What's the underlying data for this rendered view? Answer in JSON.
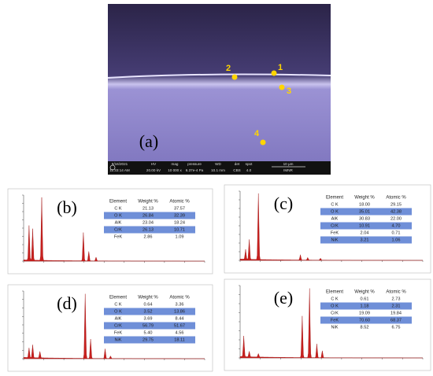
{
  "sem": {
    "label": "(a)",
    "points": [
      "1",
      "2",
      "3",
      "4"
    ],
    "info": {
      "date": "9/16/2021",
      "time": "11:33:14 AM",
      "hv_label": "HV",
      "hv": "20.00 kV",
      "mag_label": "mag",
      "mag": "10 000 x",
      "pressure_label": "pressure",
      "pressure": "6.37e-4 Pa",
      "wd_label": "WD",
      "wd": "10.1 mm",
      "det_label": "det",
      "det": "CBS",
      "spot_label": "spot",
      "spot": "4.0",
      "scale": "10 μm",
      "lab": "IMNR"
    }
  },
  "panels": [
    {
      "label": "(b)",
      "header": [
        "Element",
        "Weight %",
        "Atomic %"
      ],
      "rows": [
        [
          "C K",
          "21.13",
          "37.57"
        ],
        [
          "O K",
          "26.84",
          "32.39"
        ],
        [
          "AlK",
          "23.04",
          "18.24"
        ],
        [
          "CrK",
          "26.13",
          "10.71"
        ],
        [
          "FeK",
          "2.86",
          "1.09"
        ]
      ]
    },
    {
      "label": "(c)",
      "header": [
        "Element",
        "Weight %",
        "Atomic %"
      ],
      "rows": [
        [
          "C K",
          "18.00",
          "29.15"
        ],
        [
          "O K",
          "35.01",
          "42.38"
        ],
        [
          "AlK",
          "30.83",
          "22.00"
        ],
        [
          "CrK",
          "10.91",
          "4.70"
        ],
        [
          "FeK",
          "2.04",
          "0.71"
        ],
        [
          "NiK",
          "3.21",
          "1.06"
        ]
      ]
    },
    {
      "label": "(d)",
      "header": [
        "Element",
        "Weight %",
        "Atomic %"
      ],
      "rows": [
        [
          "C K",
          "0.64",
          "3.36"
        ],
        [
          "O K",
          "3.52",
          "13.86"
        ],
        [
          "AlK",
          "3.69",
          "8.44"
        ],
        [
          "CrK",
          "56.79",
          "51.67"
        ],
        [
          "FeK",
          "5.40",
          "4.56"
        ],
        [
          "NiK",
          "29.75",
          "18.11"
        ]
      ]
    },
    {
      "label": "(e)",
      "header": [
        "Element",
        "Weight %",
        "Atomic %"
      ],
      "rows": [
        [
          "C K",
          "0.61",
          "2.73"
        ],
        [
          "O K",
          "1.18",
          "2.31"
        ],
        [
          "CrK",
          "19.09",
          "19.84"
        ],
        [
          "FeK",
          "70.60",
          "68.37"
        ],
        [
          "NiK",
          "8.52",
          "6.75"
        ]
      ]
    }
  ]
}
